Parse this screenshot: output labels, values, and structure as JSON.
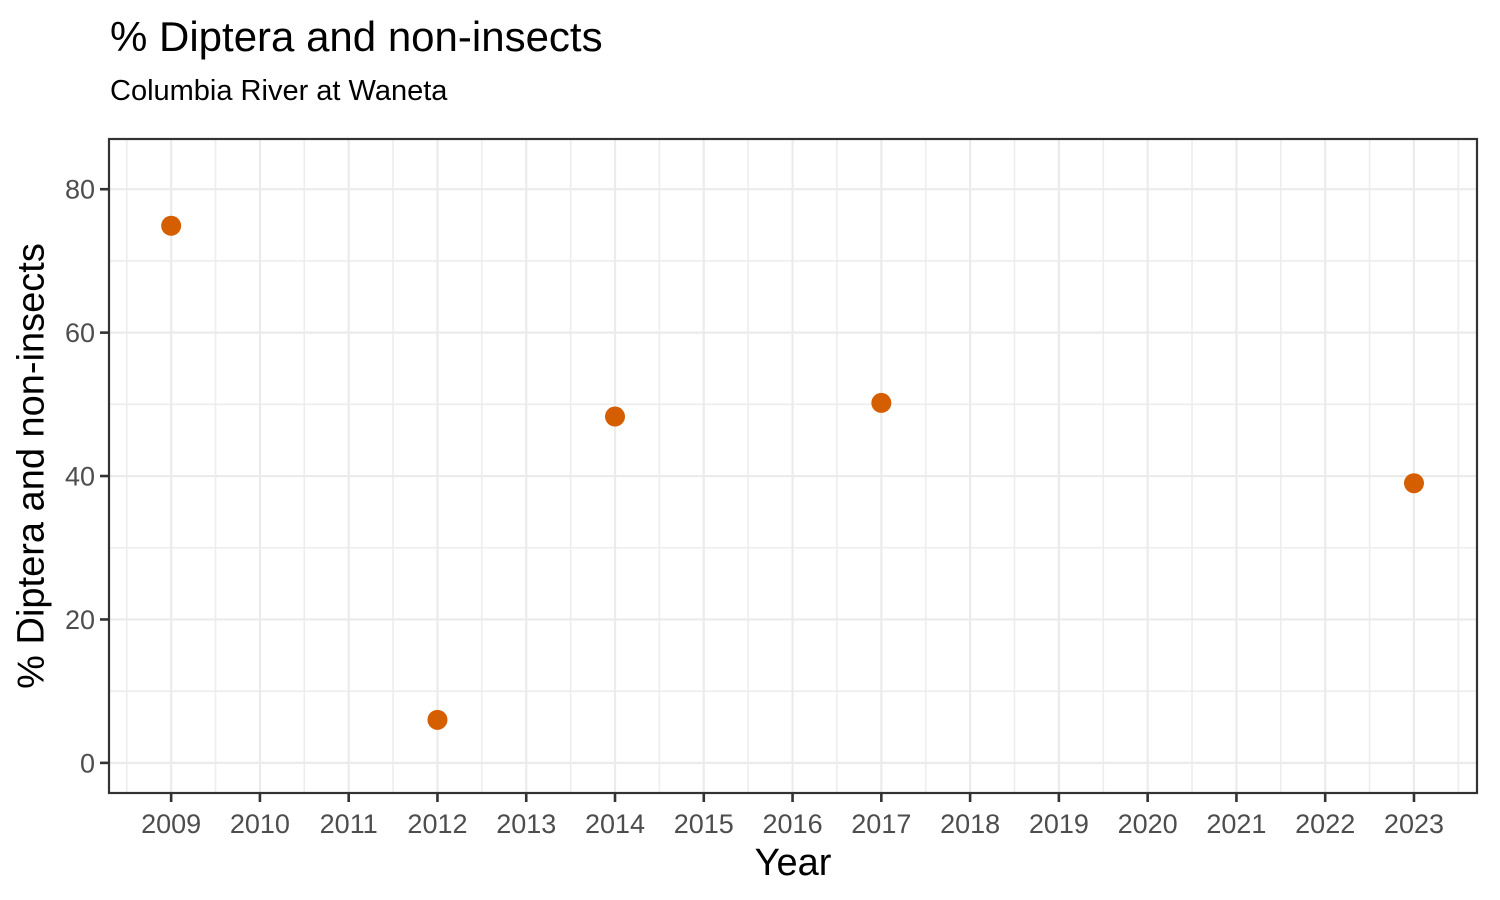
{
  "chart_data": {
    "type": "scatter",
    "title": "% Diptera and non-insects",
    "subtitle": "Columbia River at Waneta",
    "xlabel": "Year",
    "ylabel": "% Diptera and non-insects",
    "x": [
      2009,
      2012,
      2014,
      2017,
      2023
    ],
    "y": [
      74.9,
      6.0,
      48.3,
      50.2,
      39.0
    ],
    "x_ticks": [
      2009,
      2010,
      2011,
      2012,
      2013,
      2014,
      2015,
      2016,
      2017,
      2018,
      2019,
      2020,
      2021,
      2022,
      2023
    ],
    "y_ticks": [
      0,
      20,
      40,
      60,
      80
    ],
    "x_minor_gridlines": [
      2008.5,
      2009.5,
      2010.5,
      2011.5,
      2012.5,
      2013.5,
      2014.5,
      2015.5,
      2016.5,
      2017.5,
      2018.5,
      2019.5,
      2020.5,
      2021.5,
      2022.5,
      2023.5
    ],
    "y_minor_gridlines": [
      10,
      30,
      50,
      70
    ],
    "xlim": [
      2008.3,
      2023.71
    ],
    "ylim": [
      -4.2,
      87.0
    ],
    "grid": true,
    "legend_position": "none",
    "colors": {
      "point": "#D55E00",
      "grid_major": "#EBEBEB",
      "grid_minor": "#EDEDED",
      "panel_border": "#333333",
      "tick": "#333333",
      "tick_label": "#4D4D4D",
      "text": "#000000",
      "background": "#FFFFFF"
    }
  }
}
